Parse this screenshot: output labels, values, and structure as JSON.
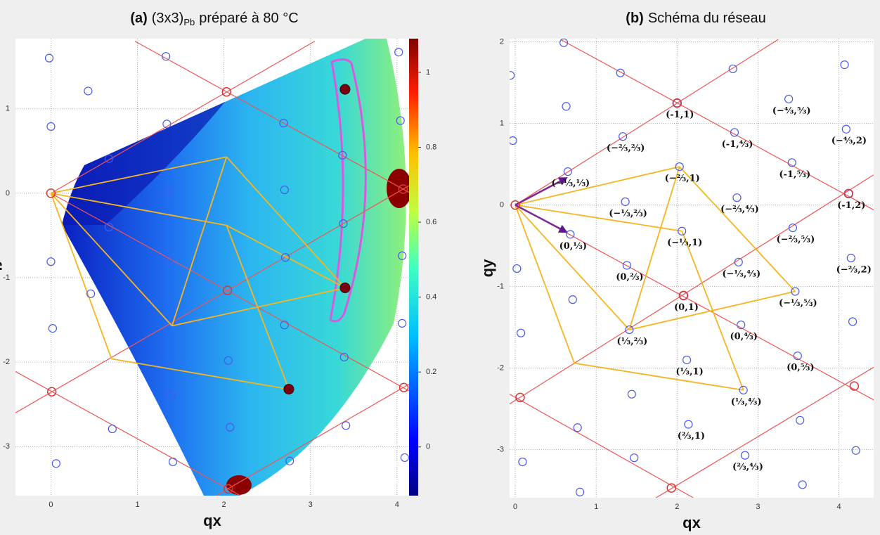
{
  "chart_data": [
    {
      "type": "scatter",
      "title": [
        "(a)",
        "(3x3)",
        "Pb",
        "préparé à 80 °C"
      ],
      "xlabel": "qx",
      "ylabel": "qy",
      "xlim": [
        -0.41,
        4.14
      ],
      "ylim": [
        -3.58,
        1.83
      ],
      "xticks": [
        0,
        1,
        2,
        3,
        4
      ],
      "yticks": [
        -3,
        -2,
        -1,
        0,
        1
      ],
      "grid": true,
      "color": "#4a5ae8",
      "x": [
        -0.02,
        1.33,
        4.02,
        0,
        0.43,
        1.34,
        2.69,
        4.04,
        1.35,
        2.7,
        3.37,
        0.67,
        0,
        0.67,
        1.36,
        2.71,
        4.06,
        3.38,
        0.46,
        0.02,
        2.7,
        4.06,
        3.39,
        2.05,
        1.39,
        2.07,
        0.71,
        0.06,
        1.41,
        2.76,
        3.41,
        4.09
      ],
      "y": [
        1.6,
        1.62,
        1.67,
        0.79,
        1.21,
        0.82,
        0.83,
        0.86,
        0.02,
        0.04,
        0.45,
        0.41,
        -0.81,
        -0.4,
        -0.78,
        -0.76,
        -0.74,
        -0.36,
        -1.19,
        -1.6,
        -1.56,
        -1.54,
        -1.94,
        -1.98,
        -2.38,
        -2.77,
        -2.79,
        -3.2,
        -3.18,
        -3.17,
        -2.75,
        -3.13
      ],
      "lattice_nodes": {
        "color": "#d83838",
        "x": [
          0,
          2.03,
          4.07,
          2.04,
          0.01,
          4.08,
          2.05
        ],
        "y": [
          0,
          1.2,
          0.05,
          -1.15,
          -2.35,
          -2.3,
          -3.5
        ]
      },
      "lattice_lines": {
        "color": "#f05555",
        "segments": [
          [
            0,
            0,
            3.05,
            1.8
          ],
          [
            -0.41,
            -2.6,
            4.14,
            0.09
          ],
          [
            1.91,
            -3.58,
            4.14,
            -2.26
          ],
          [
            0,
            0,
            4.14,
            -2.34
          ],
          [
            0.97,
            1.8,
            4.14,
            0.01
          ],
          [
            -0.41,
            -2.11,
            2.19,
            -3.58
          ]
        ]
      },
      "paths": {
        "color": "#f5b520",
        "segments": [
          [
            0,
            0,
            2.03,
            0.43
          ],
          [
            0,
            0,
            2.03,
            -0.38
          ],
          [
            0,
            0,
            1.4,
            -1.57
          ],
          [
            0,
            0,
            0.7,
            -1.96
          ],
          [
            2.03,
            0.43,
            3.4,
            -1.12
          ],
          [
            2.03,
            -0.38,
            3.4,
            -1.12
          ],
          [
            1.4,
            -1.57,
            3.4,
            -1.12
          ],
          [
            2.03,
            0.43,
            1.4,
            -1.57
          ],
          [
            0.7,
            -1.96,
            2.75,
            -2.32
          ],
          [
            2.03,
            -0.38,
            2.75,
            -2.32
          ]
        ]
      },
      "bright_spots": {
        "color": "#7a0010",
        "x": [
          3.4,
          3.4,
          2.75
        ],
        "y": [
          1.23,
          -1.12,
          -2.32
        ]
      },
      "colorbar": {
        "clim": [
          -0.13,
          1.09
        ],
        "ticks": [
          0,
          0.2,
          0.4,
          0.6,
          0.8,
          1
        ]
      }
    },
    {
      "type": "scatter",
      "title": [
        "(b)",
        "Schéma du réseau"
      ],
      "xlabel": "qx",
      "ylabel": "qy",
      "xlim": [
        -0.07,
        4.43
      ],
      "ylim": [
        -3.59,
        2.04
      ],
      "xticks": [
        0,
        1,
        2,
        3,
        4
      ],
      "yticks": [
        -3,
        -2,
        -1,
        0,
        1,
        2
      ],
      "grid": true,
      "color": "#4a5ae8",
      "x": [
        -0.06,
        0.6,
        1.3,
        2.69,
        4.07,
        -0.03,
        0.63,
        0.07,
        0.02,
        0.71,
        1.44,
        0.77,
        1.47,
        0.09,
        0.8,
        3.55,
        3.52,
        4.17,
        4.21
      ],
      "y": [
        1.59,
        1.99,
        1.62,
        1.67,
        1.72,
        0.79,
        1.21,
        -1.57,
        -0.78,
        -1.16,
        -2.32,
        -2.73,
        -3.1,
        -3.15,
        -3.52,
        -3.43,
        -2.64,
        -1.43,
        -3.01
      ],
      "labeled_points": {
        "x": [
          2.0,
          2.71,
          1.33,
          3.38,
          4.09,
          0.65,
          2.03,
          3.42,
          4.12,
          1.36,
          2.74,
          3.43,
          0.68,
          2.06,
          4.15,
          1.38,
          2.76,
          2.08,
          3.46,
          1.41,
          2.79,
          3.49,
          2.12,
          2.82,
          2.14,
          2.84
        ],
        "y": [
          1.25,
          0.89,
          0.84,
          1.3,
          0.93,
          0.41,
          0.47,
          0.52,
          0.14,
          0.04,
          0.09,
          -0.28,
          -0.36,
          -0.32,
          -0.65,
          -0.74,
          -0.7,
          -1.11,
          -1.06,
          -1.53,
          -1.47,
          -1.85,
          -1.9,
          -2.27,
          -2.69,
          -3.07
        ],
        "labels": [
          "(-1,1)",
          "(-1,⁴⁄₃)",
          "(−⅔,⅔)",
          "(−⁴⁄₃,⁵⁄₃)",
          "(−⁴⁄₃,2)",
          "(−⅓,⅓)",
          "(−⅔,1)",
          "(-1,⁵⁄₃)",
          "(-1,2)",
          "(−⅓,⅔)",
          "(−⅔,⁴⁄₃)",
          "(−⅔,⁵⁄₃)",
          "(0,⅓)",
          "(−⅓,1)",
          "(−⅔,2)",
          "(0,⅔)",
          "(−⅓,⁴⁄₃)",
          "(0,1)",
          "(−⅓,⁵⁄₃)",
          "(⅓,⅔)",
          "(0,⁴⁄₃)",
          "(0,⁵⁄₃)",
          "(⅓,1)",
          "(⅓,⁴⁄₃)",
          "(⅔,1)",
          "(⅔,⁴⁄₃)"
        ]
      },
      "lattice_nodes": {
        "color": "#d83838",
        "x": [
          0,
          2.0,
          4.12,
          2.08,
          0.06,
          4.19,
          1.93
        ],
        "y": [
          0,
          1.25,
          0.14,
          -1.11,
          -2.36,
          -2.22,
          -3.47
        ]
      },
      "lattice_lines": {
        "color": "#f05555",
        "segments": [
          [
            0,
            0,
            3.25,
            2.03
          ],
          [
            -0.07,
            -2.44,
            4.43,
            0.37
          ],
          [
            1.74,
            -3.59,
            4.43,
            -1.99
          ],
          [
            0,
            0,
            4.43,
            -2.39
          ],
          [
            0.56,
            2.03,
            4.43,
            -0.06
          ],
          [
            -0.07,
            -2.32,
            2.2,
            -3.59
          ]
        ]
      },
      "paths": {
        "color": "#f5b520",
        "segments": [
          [
            0,
            0,
            2.03,
            0.47
          ],
          [
            0,
            0,
            2.06,
            -0.32
          ],
          [
            0,
            0,
            1.41,
            -1.53
          ],
          [
            0,
            0,
            0.73,
            -1.94
          ],
          [
            2.03,
            0.47,
            3.46,
            -1.06
          ],
          [
            2.06,
            -0.32,
            2.82,
            -2.27
          ],
          [
            1.41,
            -1.53,
            3.46,
            -1.06
          ],
          [
            2.03,
            0.47,
            1.41,
            -1.53
          ],
          [
            0.73,
            -1.94,
            2.82,
            -2.27
          ]
        ]
      },
      "vectors": {
        "color": "#7a2a9a",
        "segments": [
          [
            0,
            0,
            0.63,
            0.33
          ],
          [
            0,
            0,
            0.63,
            -0.33
          ]
        ]
      }
    }
  ]
}
